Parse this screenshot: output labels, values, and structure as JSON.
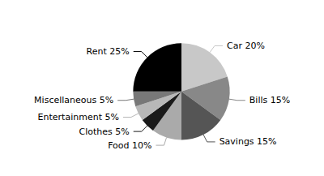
{
  "chart_data": {
    "type": "pie",
    "categories": [
      "Car 20%",
      "Bills 15%",
      "Savings 15%",
      "Food 10%",
      "Clothes 5%",
      "Entertainment 5%",
      "Miscellaneous 5%",
      "Rent 25%"
    ],
    "values": [
      20,
      15,
      15,
      10,
      5,
      5,
      5,
      25
    ],
    "colors": [
      "#c8c8c8",
      "#888888",
      "#555555",
      "#aaaaaa",
      "#1a1a1a",
      "#b8b8b8",
      "#787878",
      "#000000"
    ]
  }
}
